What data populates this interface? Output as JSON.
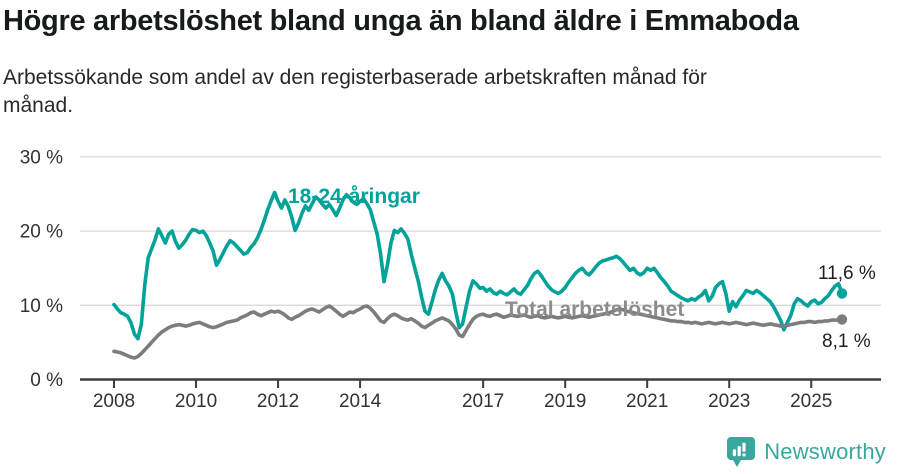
{
  "title": "Högre arbetslöshet bland unga än bland äldre i Emmaboda",
  "subtitle_line1": "Arbetssökande som andel av den registerbaserade arbetskraften månad för",
  "subtitle_line2": "månad.",
  "branding": {
    "name": "Newsworthy",
    "icon": "newsworthy-badge-bar-chart-icon",
    "color": "#3aa79f"
  },
  "colors": {
    "youth_line": "#00a29a",
    "total_line": "#7d7d7d",
    "total_label": "#8c8c8c",
    "grid": "#d9d9d9",
    "axis": "#3d3d3d",
    "tick_text": "#333333",
    "end_label_text": "#1f1f1f"
  },
  "chart_data": {
    "type": "line",
    "title": "Högre arbetslöshet bland unga än bland äldre i Emmaboda",
    "subtitle": "Arbetssökande som andel av den registerbaserade arbetskraften månad för månad.",
    "x_unit": "month",
    "x_start": "2008-01",
    "x_end": "2025-10",
    "x_tick_years": [
      2008,
      2010,
      2012,
      2014,
      2017,
      2019,
      2021,
      2023,
      2025
    ],
    "y_ticks": [
      {
        "label": "0 %",
        "value": 0
      },
      {
        "label": "10 %",
        "value": 10
      },
      {
        "label": "20 %",
        "value": 20
      },
      {
        "label": "30 %",
        "value": 30
      }
    ],
    "ylim": [
      0,
      30
    ],
    "grid": "horizontal",
    "legend_position": "inline-labels",
    "series": [
      {
        "name": "18-24-åringar",
        "color": "#00a29a",
        "end_value": 11.6,
        "end_label": "11,6 %",
        "values": [
          10.1,
          9.5,
          9.0,
          8.8,
          8.5,
          7.6,
          6.1,
          5.5,
          7.4,
          12.8,
          16.4,
          17.6,
          18.8,
          20.3,
          19.4,
          18.4,
          19.6,
          20.0,
          18.6,
          17.7,
          18.2,
          18.8,
          19.6,
          20.2,
          20.1,
          19.8,
          20.0,
          19.4,
          18.4,
          17.3,
          15.4,
          16.2,
          17.1,
          18.0,
          18.7,
          18.4,
          17.9,
          17.4,
          16.9,
          17.1,
          17.8,
          18.3,
          19.1,
          20.2,
          21.5,
          22.9,
          24.1,
          25.2,
          24.0,
          23.1,
          24.2,
          23.3,
          21.9,
          20.1,
          21.1,
          22.4,
          23.4,
          22.8,
          23.7,
          24.6,
          24.2,
          23.6,
          23.1,
          23.6,
          22.9,
          22.1,
          23.1,
          24.2,
          24.9,
          24.5,
          23.9,
          23.6,
          24.0,
          24.4,
          23.7,
          22.9,
          21.2,
          19.6,
          16.9,
          13.2,
          15.4,
          18.3,
          20.1,
          19.8,
          20.3,
          19.7,
          18.9,
          16.8,
          15.0,
          13.3,
          11.1,
          9.2,
          8.8,
          10.4,
          12.1,
          13.4,
          14.3,
          13.3,
          12.6,
          11.5,
          9.1,
          7.0,
          7.5,
          9.7,
          11.9,
          13.3,
          12.9,
          12.3,
          12.4,
          11.9,
          12.2,
          11.7,
          11.5,
          11.9,
          11.6,
          11.4,
          11.8,
          12.2,
          11.7,
          11.5,
          12.1,
          12.7,
          13.6,
          14.3,
          14.6,
          14.0,
          13.3,
          12.6,
          12.1,
          11.8,
          11.6,
          11.9,
          12.4,
          13.1,
          13.7,
          14.3,
          14.7,
          15.0,
          14.4,
          14.1,
          14.6,
          15.2,
          15.7,
          16.0,
          16.1,
          16.3,
          16.4,
          16.6,
          16.3,
          15.8,
          15.2,
          14.7,
          15.0,
          14.4,
          14.1,
          14.4,
          15.0,
          14.7,
          15.0,
          14.4,
          13.7,
          13.2,
          12.6,
          11.9,
          11.6,
          11.3,
          11.0,
          10.8,
          10.6,
          10.9,
          10.7,
          11.1,
          11.4,
          12.0,
          10.6,
          11.2,
          12.4,
          12.9,
          13.2,
          11.6,
          9.2,
          10.5,
          9.8,
          10.7,
          11.3,
          12.0,
          11.8,
          11.6,
          12.0,
          11.7,
          11.3,
          10.9,
          10.5,
          9.8,
          8.9,
          8.0,
          6.7,
          7.7,
          8.6,
          10.2,
          10.9,
          10.6,
          10.2,
          9.9,
          10.5,
          10.7,
          10.2,
          10.4,
          10.9,
          11.3,
          12.0,
          12.6,
          12.9,
          11.6
        ]
      },
      {
        "name": "Total arbetslöshet",
        "color": "#7d7d7d",
        "end_value": 8.1,
        "end_label": "8,1 %",
        "values": [
          3.8,
          3.7,
          3.6,
          3.4,
          3.2,
          3.0,
          2.9,
          3.1,
          3.5,
          4.0,
          4.5,
          5.0,
          5.5,
          6.0,
          6.4,
          6.7,
          7.0,
          7.2,
          7.3,
          7.4,
          7.3,
          7.2,
          7.3,
          7.5,
          7.6,
          7.7,
          7.5,
          7.3,
          7.1,
          7.0,
          7.1,
          7.3,
          7.5,
          7.7,
          7.8,
          7.9,
          8.0,
          8.3,
          8.5,
          8.7,
          9.0,
          9.1,
          8.8,
          8.6,
          8.8,
          9.0,
          9.2,
          9.1,
          9.2,
          9.0,
          8.7,
          8.3,
          8.1,
          8.4,
          8.6,
          8.9,
          9.2,
          9.4,
          9.5,
          9.3,
          9.1,
          9.4,
          9.7,
          9.9,
          9.6,
          9.2,
          8.8,
          8.5,
          8.8,
          9.1,
          9.0,
          9.3,
          9.5,
          9.8,
          9.9,
          9.6,
          9.1,
          8.5,
          7.9,
          7.7,
          8.2,
          8.6,
          8.8,
          8.6,
          8.3,
          8.1,
          8.0,
          8.2,
          7.9,
          7.6,
          7.2,
          7.0,
          7.3,
          7.6,
          7.9,
          8.1,
          8.3,
          8.1,
          7.9,
          7.4,
          6.8,
          6.0,
          5.8,
          6.6,
          7.4,
          8.1,
          8.5,
          8.7,
          8.8,
          8.6,
          8.5,
          8.7,
          8.8,
          8.6,
          8.4,
          8.5,
          8.7,
          8.6,
          8.5,
          8.6,
          8.7,
          8.5,
          8.4,
          8.5,
          8.6,
          8.4,
          8.3,
          8.4,
          8.5,
          8.4,
          8.3,
          8.4,
          8.5,
          8.4,
          8.3,
          8.4,
          8.5,
          8.6,
          8.5,
          8.4,
          8.5,
          8.6,
          8.7,
          8.8,
          8.9,
          9.0,
          9.2,
          9.4,
          9.5,
          9.4,
          9.2,
          9.1,
          9.0,
          8.9,
          8.8,
          8.7,
          8.6,
          8.5,
          8.4,
          8.3,
          8.2,
          8.1,
          8.0,
          7.9,
          7.9,
          7.8,
          7.8,
          7.7,
          7.7,
          7.6,
          7.7,
          7.6,
          7.5,
          7.6,
          7.7,
          7.6,
          7.5,
          7.6,
          7.7,
          7.6,
          7.5,
          7.6,
          7.7,
          7.6,
          7.5,
          7.4,
          7.5,
          7.6,
          7.5,
          7.4,
          7.3,
          7.4,
          7.5,
          7.4,
          7.3,
          7.2,
          7.2,
          7.3,
          7.4,
          7.5,
          7.6,
          7.7,
          7.7,
          7.8,
          7.8,
          7.7,
          7.8,
          7.8,
          7.9,
          7.9,
          8.0,
          8.0,
          8.0,
          8.1
        ]
      }
    ]
  }
}
